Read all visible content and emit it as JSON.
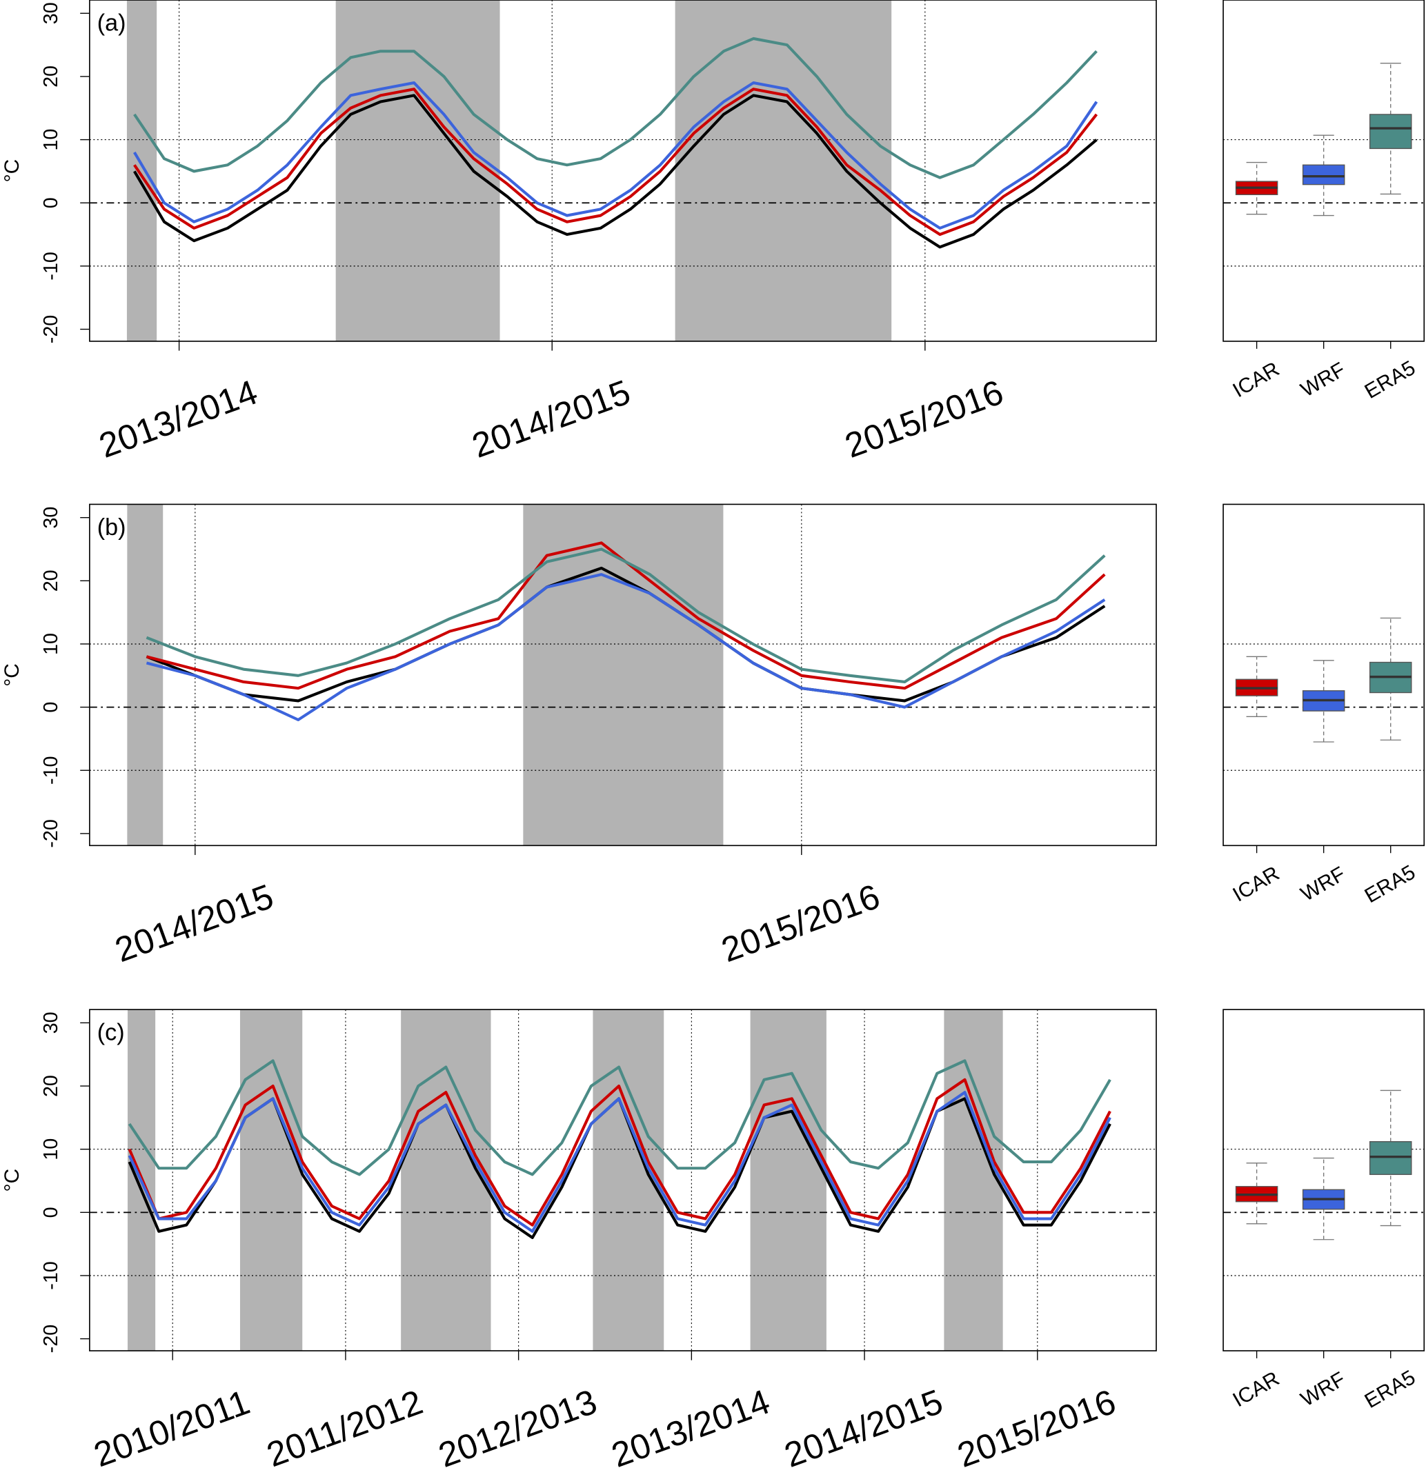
{
  "chart_data": [
    {
      "type": "line",
      "panel_label": "(a)",
      "ylabel": "°C",
      "x": [
        2013.88,
        2013.96,
        2014.04,
        2014.13,
        2014.21,
        2014.29,
        2014.38,
        2014.46,
        2014.54,
        2014.63,
        2014.71,
        2014.79,
        2014.88,
        2014.96,
        2015.04,
        2015.13,
        2015.21,
        2015.29,
        2015.38,
        2015.46,
        2015.54,
        2015.63,
        2015.71,
        2015.79,
        2015.88,
        2015.96,
        2016.04,
        2016.13,
        2016.21,
        2016.29,
        2016.38,
        2016.46
      ],
      "series": [
        {
          "color": "#000000",
          "values": [
            5,
            -3,
            -6,
            -4,
            -1,
            2,
            9,
            14,
            16,
            17,
            11,
            5,
            1,
            -3,
            -5,
            -4,
            -1,
            3,
            9,
            14,
            17,
            16,
            11,
            5,
            0,
            -4,
            -7,
            -5,
            -1,
            2,
            6,
            10
          ]
        },
        {
          "color": "#cc0000",
          "values": [
            6,
            -1,
            -4,
            -2,
            1,
            4,
            11,
            15,
            17,
            18,
            12,
            7,
            3,
            -1,
            -3,
            -2,
            1,
            5,
            11,
            15,
            18,
            17,
            12,
            6,
            2,
            -2,
            -5,
            -3,
            1,
            4,
            8,
            14
          ]
        },
        {
          "color": "#3c64dc",
          "values": [
            8,
            0,
            -3,
            -1,
            2,
            6,
            12,
            17,
            18,
            19,
            14,
            8,
            4,
            0,
            -2,
            -1,
            2,
            6,
            12,
            16,
            19,
            18,
            13,
            8,
            3,
            -1,
            -4,
            -2,
            2,
            5,
            9,
            16
          ]
        },
        {
          "color": "#4b8b86",
          "values": [
            14,
            7,
            5,
            6,
            9,
            13,
            19,
            23,
            24,
            24,
            20,
            14,
            10,
            7,
            6,
            7,
            10,
            14,
            20,
            24,
            26,
            25,
            20,
            14,
            9,
            6,
            4,
            6,
            10,
            14,
            19,
            24
          ]
        }
      ],
      "xlim": [
        2013.76,
        2016.62
      ],
      "ylim": [
        -21.9,
        32.1
      ],
      "xticks": [
        {
          "value": 2014,
          "label": "2013/2014"
        },
        {
          "value": 2015,
          "label": "2014/2015"
        },
        {
          "value": 2016,
          "label": "2015/2016"
        }
      ],
      "yticks": [
        -20,
        -10,
        0,
        10,
        20,
        30
      ],
      "shaded": [
        [
          2013.86,
          2013.94
        ],
        [
          2014.42,
          2014.86
        ],
        [
          2015.33,
          2015.91
        ]
      ],
      "ref_lines": [
        {
          "value": -10,
          "style": "dotted"
        },
        {
          "value": 0,
          "style": "dashdot"
        },
        {
          "value": 10,
          "style": "dotted"
        }
      ],
      "xgrid": true
    },
    {
      "type": "box",
      "categories": [
        "ICAR",
        "WRF",
        "ERA5"
      ],
      "boxes": [
        {
          "color": "#cc0000",
          "min": -1.8,
          "q1": 1.3,
          "median": 2.4,
          "q3": 3.4,
          "max": 6.4
        },
        {
          "color": "#3c64dc",
          "min": -2,
          "q1": 2.9,
          "median": 4.2,
          "q3": 6,
          "max": 10.7
        },
        {
          "color": "#4b8b86",
          "min": 1.4,
          "q1": 8.6,
          "median": 11.8,
          "q3": 14,
          "max": 22.1
        }
      ],
      "ylim": [
        -21.9,
        32.1
      ],
      "ref_lines": [
        {
          "value": -10,
          "style": "dotted"
        },
        {
          "value": 0,
          "style": "dashdot"
        },
        {
          "value": 10,
          "style": "dotted"
        }
      ]
    },
    {
      "type": "line",
      "panel_label": "(b)",
      "ylabel": "°C",
      "x": [
        2014.92,
        2015.0,
        2015.08,
        2015.17,
        2015.25,
        2015.33,
        2015.42,
        2015.5,
        2015.58,
        2015.67,
        2015.75,
        2015.83,
        2015.92,
        2016.0,
        2016.08,
        2016.17,
        2016.25,
        2016.33,
        2016.42,
        2016.5
      ],
      "series": [
        {
          "color": "#000000",
          "values": [
            8,
            5,
            2,
            1,
            4,
            6,
            10,
            13,
            19,
            22,
            18,
            13,
            7,
            3,
            2,
            1,
            4,
            8,
            11,
            16
          ]
        },
        {
          "color": "#cc0000",
          "values": [
            8,
            6,
            4,
            3,
            6,
            8,
            12,
            14,
            24,
            26,
            20,
            14,
            9,
            5,
            4,
            3,
            7,
            11,
            14,
            21
          ]
        },
        {
          "color": "#3c64dc",
          "values": [
            7,
            5,
            2,
            -2,
            3,
            6,
            10,
            13,
            19,
            21,
            18,
            13,
            7,
            3,
            2,
            0,
            4,
            8,
            12,
            17
          ]
        },
        {
          "color": "#4b8b86",
          "values": [
            11,
            8,
            6,
            5,
            7,
            10,
            14,
            17,
            23,
            25,
            21,
            15,
            10,
            6,
            5,
            4,
            9,
            13,
            17,
            24
          ]
        }
      ],
      "xlim": [
        2014.826,
        2016.585
      ],
      "ylim": [
        -21.9,
        32.1
      ],
      "xticks": [
        {
          "value": 2015,
          "label": "2014/2015"
        },
        {
          "value": 2016,
          "label": "2015/2016"
        }
      ],
      "yticks": [
        -20,
        -10,
        0,
        10,
        20,
        30
      ],
      "shaded": [
        [
          2014.888,
          2014.947
        ],
        [
          2015.541,
          2015.871
        ]
      ],
      "ref_lines": [
        {
          "value": -10,
          "style": "dotted"
        },
        {
          "value": 0,
          "style": "dashdot"
        },
        {
          "value": 10,
          "style": "dotted"
        }
      ],
      "xgrid": true
    },
    {
      "type": "box",
      "categories": [
        "ICAR",
        "WRF",
        "ERA5"
      ],
      "boxes": [
        {
          "color": "#cc0000",
          "min": -1.5,
          "q1": 1.8,
          "median": 3,
          "q3": 4.4,
          "max": 8
        },
        {
          "color": "#3c64dc",
          "min": -5.5,
          "q1": -0.6,
          "median": 1.1,
          "q3": 2.6,
          "max": 7.4
        },
        {
          "color": "#4b8b86",
          "min": -5.2,
          "q1": 2.3,
          "median": 4.8,
          "q3": 7.1,
          "max": 14.1
        }
      ],
      "ylim": [
        -21.9,
        32.1
      ],
      "ref_lines": [
        {
          "value": -10,
          "style": "dotted"
        },
        {
          "value": 0,
          "style": "dashdot"
        },
        {
          "value": 10,
          "style": "dotted"
        }
      ]
    },
    {
      "type": "line",
      "panel_label": "(c)",
      "ylabel": "°C",
      "x": [
        2010.75,
        2010.92,
        2011.08,
        2011.25,
        2011.42,
        2011.58,
        2011.75,
        2011.92,
        2012.08,
        2012.25,
        2012.42,
        2012.58,
        2012.75,
        2012.92,
        2013.08,
        2013.25,
        2013.42,
        2013.58,
        2013.75,
        2013.92,
        2014.08,
        2014.25,
        2014.42,
        2014.58,
        2014.75,
        2014.92,
        2015.08,
        2015.25,
        2015.42,
        2015.58,
        2015.75,
        2015.92,
        2016.08,
        2016.25,
        2016.42
      ],
      "series": [
        {
          "color": "#000000",
          "values": [
            8,
            -3,
            -2,
            5,
            15,
            18,
            6,
            -1,
            -3,
            3,
            14,
            17,
            7,
            -1,
            -4,
            4,
            14,
            18,
            6,
            -2,
            -3,
            4,
            15,
            16,
            7,
            -2,
            -3,
            4,
            16,
            18,
            6,
            -2,
            -2,
            5,
            14
          ]
        },
        {
          "color": "#cc0000",
          "values": [
            10,
            -1,
            0,
            7,
            17,
            20,
            8,
            1,
            -1,
            5,
            16,
            19,
            9,
            1,
            -2,
            6,
            16,
            20,
            8,
            0,
            -1,
            6,
            17,
            18,
            9,
            0,
            -1,
            6,
            18,
            21,
            8,
            0,
            0,
            7,
            16
          ]
        },
        {
          "color": "#3c64dc",
          "values": [
            9,
            -1,
            -1,
            5,
            15,
            18,
            7,
            0,
            -2,
            4,
            14,
            17,
            8,
            0,
            -3,
            5,
            14,
            18,
            7,
            -1,
            -2,
            5,
            15,
            17,
            8,
            -1,
            -2,
            5,
            16,
            19,
            7,
            -1,
            -1,
            6,
            15
          ]
        },
        {
          "color": "#4b8b86",
          "values": [
            14,
            7,
            7,
            12,
            21,
            24,
            12,
            8,
            6,
            10,
            20,
            23,
            13,
            8,
            6,
            11,
            20,
            23,
            12,
            7,
            7,
            11,
            21,
            22,
            13,
            8,
            7,
            11,
            22,
            24,
            12,
            8,
            8,
            13,
            21
          ]
        }
      ],
      "xlim": [
        2010.52,
        2016.687
      ],
      "ylim": [
        -21.9,
        32.1
      ],
      "xticks": [
        {
          "value": 2011,
          "label": "2010/2011"
        },
        {
          "value": 2012,
          "label": "2011/2012"
        },
        {
          "value": 2013,
          "label": "2012/2013"
        },
        {
          "value": 2014,
          "label": "2013/2014"
        },
        {
          "value": 2015,
          "label": "2014/2015"
        },
        {
          "value": 2016,
          "label": "2015/2016"
        }
      ],
      "yticks": [
        -20,
        -10,
        0,
        10,
        20,
        30
      ],
      "shaded": [
        [
          2010.74,
          2010.9
        ],
        [
          2011.39,
          2011.75
        ],
        [
          2012.32,
          2012.84
        ],
        [
          2013.43,
          2013.84
        ],
        [
          2014.34,
          2014.78
        ],
        [
          2015.46,
          2015.8
        ]
      ],
      "ref_lines": [
        {
          "value": -10,
          "style": "dotted"
        },
        {
          "value": 0,
          "style": "dashdot"
        },
        {
          "value": 10,
          "style": "dotted"
        }
      ],
      "xgrid": true
    },
    {
      "type": "box",
      "categories": [
        "ICAR",
        "WRF",
        "ERA5"
      ],
      "boxes": [
        {
          "color": "#cc0000",
          "min": -1.8,
          "q1": 1.7,
          "median": 2.8,
          "q3": 4.1,
          "max": 7.8
        },
        {
          "color": "#3c64dc",
          "min": -4.3,
          "q1": 0.5,
          "median": 2.1,
          "q3": 3.6,
          "max": 8.6
        },
        {
          "color": "#4b8b86",
          "min": -2.1,
          "q1": 6,
          "median": 8.8,
          "q3": 11.2,
          "max": 19.3
        }
      ],
      "ylim": [
        -21.9,
        32.1
      ],
      "ref_lines": [
        {
          "value": -10,
          "style": "dotted"
        },
        {
          "value": 0,
          "style": "dashdot"
        },
        {
          "value": 10,
          "style": "dotted"
        }
      ]
    }
  ]
}
